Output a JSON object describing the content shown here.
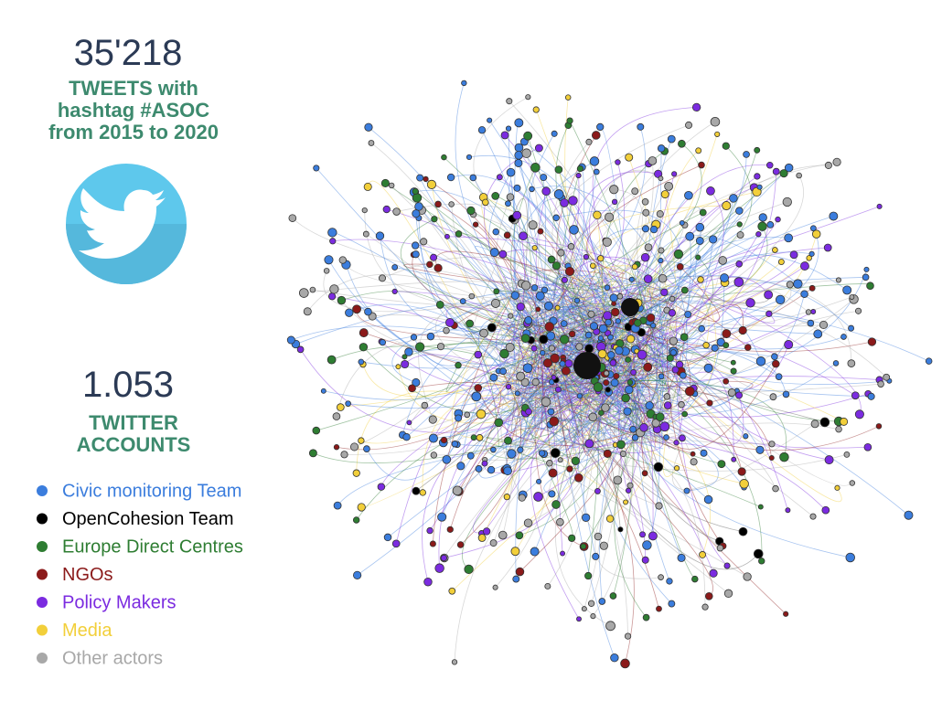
{
  "stats": [
    {
      "value": "35'218",
      "label": [
        "TWEETS with",
        "hashtag #ASOC",
        "from 2015 to 2020"
      ]
    },
    {
      "value": "1.053",
      "label": [
        "TWITTER",
        "ACCOUNTS"
      ]
    }
  ],
  "legend": [
    {
      "name": "Civic monitoring Team",
      "color": "#3b7ddd"
    },
    {
      "name": "OpenCohesion Team",
      "color": "#000000"
    },
    {
      "name": "Europe Direct Centres",
      "color": "#2e7d32"
    },
    {
      "name": "NGOs",
      "color": "#8b1a1a"
    },
    {
      "name": "Policy Makers",
      "color": "#7b2be0"
    },
    {
      "name": "Media",
      "color": "#f2cf3a"
    },
    {
      "name": "Other actors",
      "color": "#a8a8a8"
    }
  ]
}
